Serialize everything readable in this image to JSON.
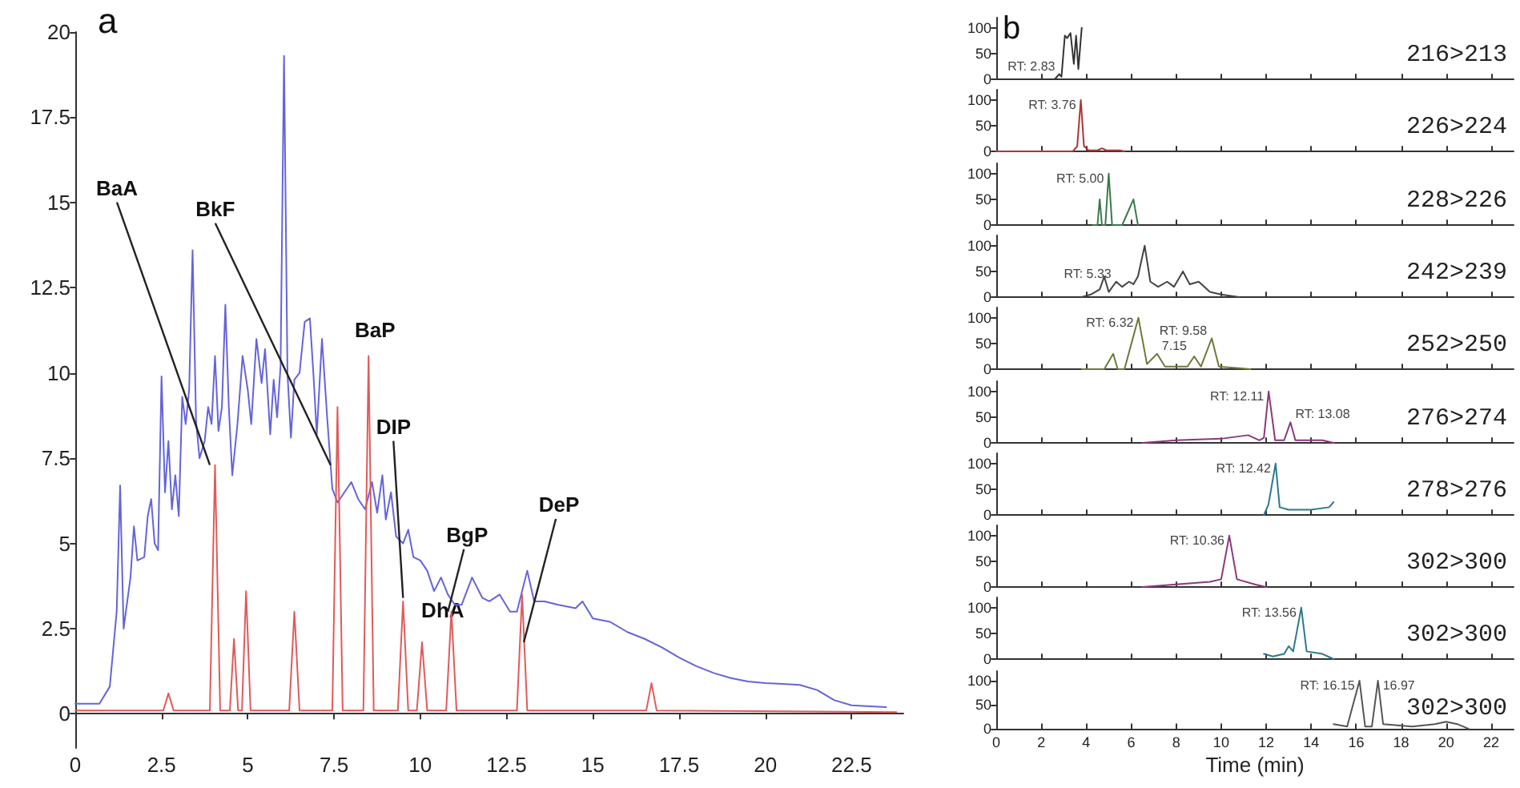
{
  "chart_data": [
    {
      "type": "line",
      "title": "a",
      "xlim": [
        0,
        24
      ],
      "xticks": [
        0,
        2.5,
        5,
        7.5,
        10,
        12.5,
        15,
        17.5,
        20,
        22.5
      ],
      "ylim": [
        -1,
        20
      ],
      "yticks": [
        0,
        2.5,
        5,
        7.5,
        10,
        12.5,
        15,
        17.5,
        20
      ],
      "marker": "none",
      "series": [
        {
          "color": "#6464dc",
          "x": [
            0,
            0.7,
            1.0,
            1.2,
            1.3,
            1.4,
            1.6,
            1.7,
            1.8,
            2.0,
            2.1,
            2.2,
            2.3,
            2.4,
            2.5,
            2.6,
            2.7,
            2.8,
            2.9,
            3.0,
            3.1,
            3.2,
            3.3,
            3.4,
            3.5,
            3.6,
            3.75,
            3.85,
            3.95,
            4.05,
            4.15,
            4.25,
            4.35,
            4.45,
            4.55,
            4.7,
            4.85,
            5.0,
            5.1,
            5.25,
            5.4,
            5.5,
            5.65,
            5.75,
            5.85,
            5.95,
            6.05,
            6.15,
            6.25,
            6.35,
            6.5,
            6.65,
            6.8,
            6.9,
            7.0,
            7.15,
            7.3,
            7.45,
            7.6,
            7.8,
            8.0,
            8.2,
            8.4,
            8.6,
            8.75,
            8.9,
            9.0,
            9.15,
            9.3,
            9.5,
            9.65,
            9.8,
            10.0,
            10.2,
            10.4,
            10.6,
            10.8,
            11.0,
            11.2,
            11.5,
            11.8,
            12.0,
            12.3,
            12.6,
            12.8,
            13.1,
            13.3,
            13.6,
            14.0,
            14.5,
            14.7,
            15,
            15.5,
            16,
            16.5,
            17,
            17.5,
            18,
            18.5,
            19,
            19.5,
            20,
            20.5,
            21,
            21.5,
            22,
            22.5,
            23.5
          ],
          "values": [
            0.3,
            0.3,
            0.8,
            3,
            6.7,
            2.5,
            4,
            5.5,
            4.5,
            4.6,
            5.8,
            6.3,
            5,
            4.8,
            9.9,
            6.5,
            8,
            6,
            7,
            5.8,
            9.3,
            8.5,
            9.5,
            13.6,
            8.6,
            7.5,
            8,
            9,
            8.5,
            10.5,
            8.3,
            9,
            12,
            9,
            7,
            8.5,
            10.5,
            9.5,
            8.5,
            11,
            9.7,
            10.7,
            8.2,
            9.8,
            8.7,
            10.2,
            19.3,
            10,
            8.1,
            9.8,
            10,
            11.5,
            11.6,
            10,
            8.2,
            11,
            8.7,
            6.6,
            6.2,
            6.5,
            6.8,
            6.3,
            6.0,
            6.8,
            5.9,
            7,
            5.7,
            6.5,
            5.2,
            5,
            5.4,
            4.6,
            4.5,
            4.2,
            3.6,
            4.0,
            3.5,
            3.2,
            3.2,
            4.0,
            3.4,
            3.3,
            3.5,
            3.0,
            3.0,
            4.2,
            3.3,
            3.3,
            3.2,
            3.1,
            3.3,
            2.8,
            2.7,
            2.4,
            2.2,
            1.95,
            1.65,
            1.4,
            1.2,
            1.05,
            0.95,
            0.9,
            0.88,
            0.85,
            0.7,
            0.4,
            0.25,
            0.2
          ]
        },
        {
          "color": "#e05a5a",
          "x": [
            0,
            2.55,
            2.7,
            2.85,
            3.9,
            4.05,
            4.2,
            4.48,
            4.6,
            4.72,
            4.83,
            4.95,
            5.08,
            6.2,
            6.35,
            6.5,
            7.45,
            7.6,
            7.75,
            8.35,
            8.5,
            8.65,
            9.35,
            9.5,
            9.65,
            9.9,
            10.05,
            10.2,
            10.75,
            10.9,
            11.05,
            12.8,
            12.95,
            13.1,
            16.55,
            16.7,
            16.85,
            23.8
          ],
          "values": [
            0.1,
            0.1,
            0.6,
            0.1,
            0.1,
            7.3,
            0.1,
            0.1,
            2.2,
            0.1,
            0.1,
            3.6,
            0.1,
            0.1,
            3.0,
            0.1,
            0.1,
            9.0,
            0.1,
            0.1,
            10.5,
            0.1,
            0.1,
            3.3,
            0.1,
            0.1,
            2.1,
            0.1,
            0.1,
            3.0,
            0.1,
            0.1,
            3.5,
            0.1,
            0.1,
            0.9,
            0.1,
            0.05
          ]
        }
      ],
      "annotations": [
        {
          "text": "BaA",
          "x": 3.9,
          "y": 7.3
        },
        {
          "text": "BkF",
          "x": 7.4,
          "y": 7.3
        },
        {
          "text": "BaP",
          "x": 8.5,
          "y": 10.5
        },
        {
          "text": "DIP",
          "x": 9.5,
          "y": 3.4
        },
        {
          "text": "DhA",
          "x": 10.0,
          "y": 2.2
        },
        {
          "text": "BgP",
          "x": 10.8,
          "y": 3.0
        },
        {
          "text": "DeP",
          "x": 13.0,
          "y": 2.1
        }
      ]
    },
    {
      "type": "line",
      "title": "b",
      "color": "#333333",
      "xlim": [
        0,
        23
      ],
      "xticks": [
        0,
        2,
        4,
        6,
        8,
        10,
        12,
        14,
        16,
        18,
        20,
        22
      ],
      "ylim": [
        0,
        120
      ],
      "yticks": [
        0,
        50,
        100
      ],
      "tick_labels": "y",
      "marker": "none",
      "x": [
        0,
        2.6,
        2.8,
        2.9,
        3.05,
        3.15,
        3.3,
        3.45,
        3.55,
        3.65,
        3.8
      ],
      "values": [
        0,
        0,
        10,
        5,
        85,
        80,
        90,
        30,
        85,
        20,
        100
      ],
      "annotations": [
        "216>213",
        {
          "text": "RT: 2.83",
          "x": 2.83,
          "y": 10
        }
      ]
    },
    {
      "type": "line",
      "color": "#b03535",
      "xlim": [
        0,
        23
      ],
      "xticks": [
        0,
        2,
        4,
        6,
        8,
        10,
        12,
        14,
        16,
        18,
        20,
        22
      ],
      "ylim": [
        0,
        120
      ],
      "yticks": [
        0,
        50,
        100
      ],
      "tick_labels": "y",
      "marker": "none",
      "x": [
        0,
        3.4,
        3.6,
        3.76,
        3.9,
        4.1,
        4.5,
        4.7,
        4.9,
        5.5,
        5.7
      ],
      "values": [
        0,
        0,
        10,
        100,
        10,
        2,
        2,
        6,
        2,
        2,
        0
      ],
      "annotations": [
        "226>224",
        {
          "text": "RT: 3.76",
          "x": 3.76,
          "y": 100
        }
      ]
    },
    {
      "type": "line",
      "color": "#3a7a4a",
      "xlim": [
        0,
        23
      ],
      "xticks": [
        0,
        2,
        4,
        6,
        8,
        10,
        12,
        14,
        16,
        18,
        20,
        22
      ],
      "ylim": [
        0,
        120
      ],
      "yticks": [
        0,
        50,
        100
      ],
      "tick_labels": "y",
      "marker": "none",
      "x": [
        4.3,
        4.5,
        4.6,
        4.7,
        4.85,
        5.0,
        5.15,
        5.6,
        5.9,
        6.1,
        6.3
      ],
      "values": [
        0,
        0,
        50,
        0,
        0,
        100,
        0,
        0,
        30,
        50,
        0
      ],
      "annotations": [
        "228>226",
        {
          "text": "RT: 5.00",
          "x": 5.0,
          "y": 100
        }
      ]
    },
    {
      "type": "line",
      "color": "#444444",
      "xlim": [
        0,
        23
      ],
      "xticks": [
        0,
        2,
        4,
        6,
        8,
        10,
        12,
        14,
        16,
        18,
        20,
        22
      ],
      "ylim": [
        0,
        120
      ],
      "yticks": [
        0,
        50,
        100
      ],
      "tick_labels": "y",
      "marker": "none",
      "x": [
        3.8,
        4.2,
        4.6,
        4.8,
        5.0,
        5.33,
        5.6,
        5.9,
        6.1,
        6.3,
        6.6,
        6.85,
        7.2,
        7.6,
        7.9,
        8.3,
        8.6,
        9.0,
        9.5,
        10,
        10.8
      ],
      "values": [
        0,
        5,
        15,
        40,
        10,
        30,
        20,
        30,
        25,
        40,
        100,
        30,
        20,
        30,
        20,
        50,
        25,
        30,
        10,
        5,
        0
      ],
      "annotations": [
        "242>239",
        {
          "text": "RT: 5.33",
          "x": 5.33,
          "y": 30
        }
      ]
    },
    {
      "type": "line",
      "color": "#6a7a3a",
      "xlim": [
        0,
        23
      ],
      "xticks": [
        0,
        2,
        4,
        6,
        8,
        10,
        12,
        14,
        16,
        18,
        20,
        22
      ],
      "ylim": [
        0,
        120
      ],
      "yticks": [
        0,
        50,
        100
      ],
      "tick_labels": "y",
      "marker": "none",
      "x": [
        3.8,
        4.8,
        5.2,
        5.4,
        5.7,
        6.32,
        6.7,
        7.15,
        7.5,
        8.5,
        8.8,
        9.1,
        9.58,
        9.9,
        10.8,
        11.3
      ],
      "values": [
        0,
        0,
        30,
        0,
        0,
        100,
        10,
        30,
        5,
        5,
        25,
        5,
        60,
        5,
        2,
        0
      ],
      "annotations": [
        "252>250",
        {
          "text": "RT: 6.32",
          "x": 6.32,
          "y": 100
        },
        {
          "text": "7.15",
          "x": 7.15,
          "y": 30
        },
        {
          "text": "RT: 9.58",
          "x": 9.58,
          "y": 60
        }
      ]
    },
    {
      "type": "line",
      "color": "#8a3a7a",
      "xlim": [
        0,
        23
      ],
      "xticks": [
        0,
        2,
        4,
        6,
        8,
        10,
        12,
        14,
        16,
        18,
        20,
        22
      ],
      "ylim": [
        0,
        120
      ],
      "yticks": [
        0,
        50,
        100
      ],
      "tick_labels": "y",
      "marker": "none",
      "x": [
        6.5,
        8,
        10,
        11.2,
        11.7,
        11.9,
        12.11,
        12.4,
        12.8,
        13.08,
        13.3,
        14.5,
        15
      ],
      "values": [
        0,
        5,
        8,
        15,
        5,
        10,
        100,
        5,
        5,
        40,
        5,
        5,
        0
      ],
      "annotations": [
        "276>274",
        {
          "text": "RT: 12.11",
          "x": 12.11,
          "y": 100
        },
        {
          "text": "RT: 13.08",
          "x": 13.08,
          "y": 40
        }
      ]
    },
    {
      "type": "line",
      "color": "#2a7a8a",
      "xlim": [
        0,
        23
      ],
      "xticks": [
        0,
        2,
        4,
        6,
        8,
        10,
        12,
        14,
        16,
        18,
        20,
        22
      ],
      "ylim": [
        0,
        120
      ],
      "yticks": [
        0,
        50,
        100
      ],
      "tick_labels": "y",
      "marker": "none",
      "x": [
        11.9,
        12.1,
        12.42,
        12.6,
        13,
        14,
        14.8,
        14.9,
        15
      ],
      "values": [
        0,
        20,
        100,
        15,
        10,
        10,
        15,
        20,
        25
      ],
      "annotations": [
        "278>276",
        {
          "text": "RT: 12.42",
          "x": 12.42,
          "y": 100
        }
      ]
    },
    {
      "type": "line",
      "color": "#8a3a7a",
      "xlim": [
        0,
        23
      ],
      "xticks": [
        0,
        2,
        4,
        6,
        8,
        10,
        12,
        14,
        16,
        18,
        20,
        22
      ],
      "ylim": [
        0,
        120
      ],
      "yticks": [
        0,
        50,
        100
      ],
      "tick_labels": "y",
      "marker": "none",
      "x": [
        6.5,
        8,
        9.5,
        10.0,
        10.36,
        10.7,
        11.5,
        12
      ],
      "values": [
        0,
        5,
        10,
        15,
        100,
        15,
        5,
        0
      ],
      "annotations": [
        "302>300",
        {
          "text": "RT: 10.36",
          "x": 10.36,
          "y": 100
        }
      ]
    },
    {
      "type": "line",
      "color": "#2a7a8a",
      "xlim": [
        0,
        23
      ],
      "xticks": [
        0,
        2,
        4,
        6,
        8,
        10,
        12,
        14,
        16,
        18,
        20,
        22
      ],
      "ylim": [
        0,
        120
      ],
      "yticks": [
        0,
        50,
        100
      ],
      "tick_labels": "y",
      "marker": "none",
      "x": [
        11.9,
        12.3,
        12.8,
        13.0,
        13.2,
        13.56,
        13.8,
        14.5,
        15
      ],
      "values": [
        10,
        5,
        10,
        25,
        15,
        100,
        15,
        10,
        0
      ],
      "annotations": [
        "302>300",
        {
          "text": "RT: 13.56",
          "x": 13.56,
          "y": 100
        }
      ]
    },
    {
      "type": "line",
      "color": "#555555",
      "xlabel": "Time (min)",
      "xlim": [
        0,
        23
      ],
      "xticks": [
        0,
        2,
        4,
        6,
        8,
        10,
        12,
        14,
        16,
        18,
        20,
        22
      ],
      "ylim": [
        0,
        120
      ],
      "yticks": [
        0,
        50,
        100
      ],
      "marker": "none",
      "x": [
        15,
        15.6,
        16.15,
        16.4,
        16.7,
        16.97,
        17.2,
        18.5,
        19.5,
        20,
        20.5,
        21
      ],
      "values": [
        10,
        5,
        100,
        5,
        5,
        100,
        10,
        5,
        10,
        15,
        10,
        0
      ],
      "annotations": [
        "302>300",
        {
          "text": "RT: 16.15",
          "x": 16.15,
          "y": 100
        },
        {
          "text": "16.97",
          "x": 16.97,
          "y": 100
        }
      ]
    }
  ]
}
